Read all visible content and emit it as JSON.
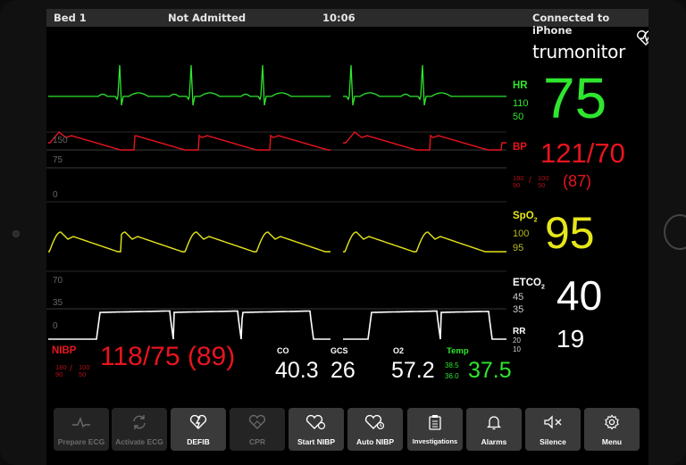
{
  "status": {
    "bed": "Bed 1",
    "admission": "Not Admitted",
    "time": "10:06",
    "connection": "Connected to iPhone"
  },
  "brand": {
    "name": "trumonitor"
  },
  "hr": {
    "label": "HR",
    "value": "75",
    "upper": "110",
    "lower": "50"
  },
  "bp": {
    "label": "BP",
    "value": "121/70",
    "mean": "(87)",
    "sys_limits": "180\n90",
    "dia_limits": "100\n50",
    "scale_top": "150",
    "scale_mid": "75",
    "scale_zero": "0"
  },
  "spo2": {
    "label": "SpO",
    "sub": "2",
    "value": "95",
    "upper": "100",
    "lower": "95"
  },
  "etco2": {
    "label": "ETCO",
    "sub": "2",
    "value": "40",
    "upper": "45",
    "lower": "35",
    "scale_top": "70",
    "scale_mid": "35",
    "scale_zero": "0"
  },
  "rr": {
    "label": "RR",
    "value": "19",
    "upper": "20",
    "lower": "10"
  },
  "nibp": {
    "label": "NIBP",
    "value": "118/75 (89)",
    "sys_limits": "180\n90",
    "dia_limits": "100\n50"
  },
  "co": {
    "label": "CO",
    "value": "40.3"
  },
  "gcs": {
    "label": "GCS",
    "value": "26"
  },
  "o2": {
    "label": "O2",
    "value": "57.2"
  },
  "temp": {
    "label": "Temp",
    "value": "37.5",
    "upper": "38.5",
    "lower": "36.0"
  },
  "colors": {
    "hr": "#2ee62e",
    "bp": "#e8141e",
    "spo2": "#e6e61a",
    "etco2": "#ffffff",
    "temp": "#2ee62e"
  },
  "buttons": [
    {
      "label": "Prepare ECG",
      "icon": "ecg-icon",
      "enabled": false
    },
    {
      "label": "Activate ECG",
      "icon": "refresh-icon",
      "enabled": false
    },
    {
      "label": "DEFIB",
      "icon": "heart-bolt-icon",
      "enabled": true
    },
    {
      "label": "CPR",
      "icon": "heart-hands-icon",
      "enabled": false
    },
    {
      "label": "Start NIBP",
      "icon": "heart-cuff-icon",
      "enabled": true
    },
    {
      "label": "Auto NIBP",
      "icon": "heart-clock-icon",
      "enabled": true
    },
    {
      "label": "Investigations",
      "icon": "clipboard-icon",
      "enabled": true
    },
    {
      "label": "Alarms",
      "icon": "bell-icon",
      "enabled": true
    },
    {
      "label": "Silence",
      "icon": "speaker-mute-icon",
      "enabled": true
    },
    {
      "label": "Menu",
      "icon": "gear-icon",
      "enabled": true
    }
  ]
}
